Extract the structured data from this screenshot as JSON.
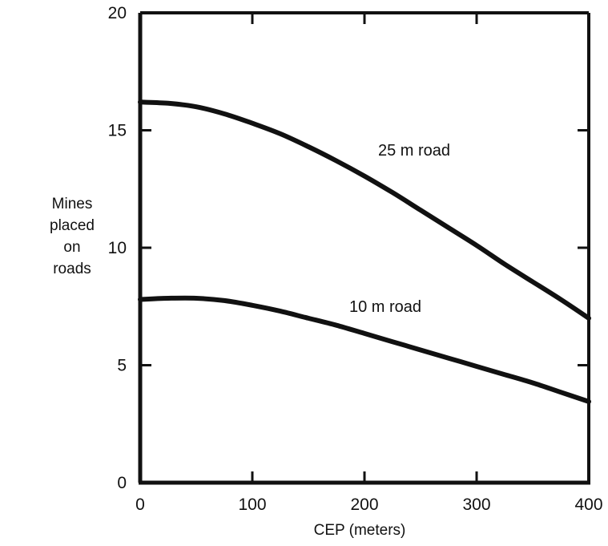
{
  "chart_data": {
    "type": "line",
    "title": "",
    "xlabel": "CEP (meters)",
    "ylabel_lines": [
      "Mines",
      "placed",
      "on",
      "roads"
    ],
    "xlim": [
      0,
      400
    ],
    "ylim": [
      0,
      20
    ],
    "x_ticks": [
      0,
      100,
      200,
      300,
      400
    ],
    "y_ticks": [
      0,
      5,
      10,
      15,
      20
    ],
    "grid": false,
    "series": [
      {
        "name": "25 m road",
        "x": [
          0,
          25,
          50,
          75,
          100,
          125,
          150,
          175,
          200,
          225,
          250,
          275,
          300,
          325,
          350,
          375,
          400
        ],
        "y": [
          16.2,
          16.15,
          16.0,
          15.7,
          15.3,
          14.85,
          14.3,
          13.7,
          13.05,
          12.35,
          11.6,
          10.85,
          10.1,
          9.3,
          8.55,
          7.8,
          7.0
        ]
      },
      {
        "name": "10 m road",
        "x": [
          0,
          25,
          50,
          75,
          100,
          125,
          150,
          175,
          200,
          225,
          250,
          275,
          300,
          325,
          350,
          375,
          400
        ],
        "y": [
          7.8,
          7.85,
          7.85,
          7.75,
          7.55,
          7.3,
          7.0,
          6.7,
          6.35,
          6.0,
          5.65,
          5.3,
          4.95,
          4.6,
          4.25,
          3.85,
          3.45
        ]
      }
    ],
    "colors": {
      "line": "#111111",
      "axis": "#111111",
      "background": "#ffffff"
    }
  }
}
